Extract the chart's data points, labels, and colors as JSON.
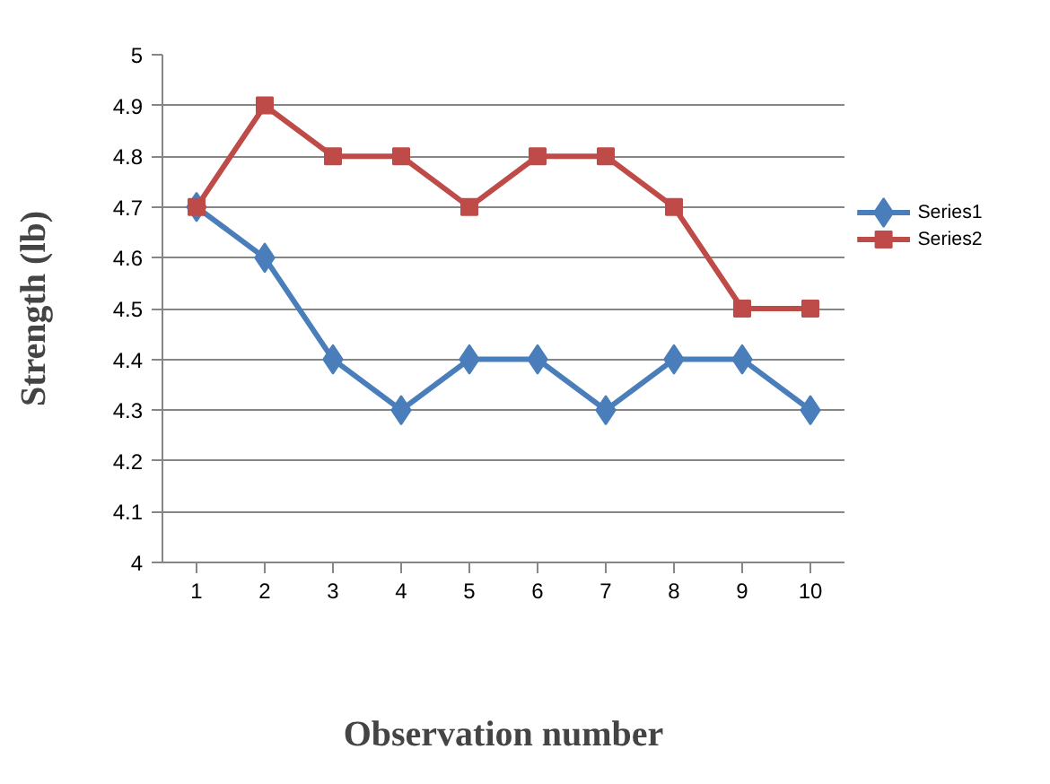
{
  "chart_data": {
    "type": "line",
    "xlabel": "Observation number",
    "ylabel": "Strength (lb)",
    "categories": [
      "1",
      "2",
      "3",
      "4",
      "5",
      "6",
      "7",
      "8",
      "9",
      "10"
    ],
    "series": [
      {
        "name": "Series1",
        "color": "#4a7ebb",
        "marker": "diamond",
        "values": [
          4.7,
          4.6,
          4.4,
          4.3,
          4.4,
          4.4,
          4.3,
          4.4,
          4.4,
          4.3
        ]
      },
      {
        "name": "Series2",
        "color": "#be4b48",
        "marker": "square",
        "values": [
          4.7,
          4.9,
          4.8,
          4.8,
          4.7,
          4.8,
          4.8,
          4.7,
          4.5,
          4.5
        ]
      }
    ],
    "ylim": [
      4,
      5
    ],
    "yticks": [
      4,
      4.1,
      4.2,
      4.3,
      4.4,
      4.5,
      4.6,
      4.7,
      4.8,
      4.9,
      5
    ],
    "grid": "y",
    "legend": "right",
    "line_style": "solid"
  }
}
